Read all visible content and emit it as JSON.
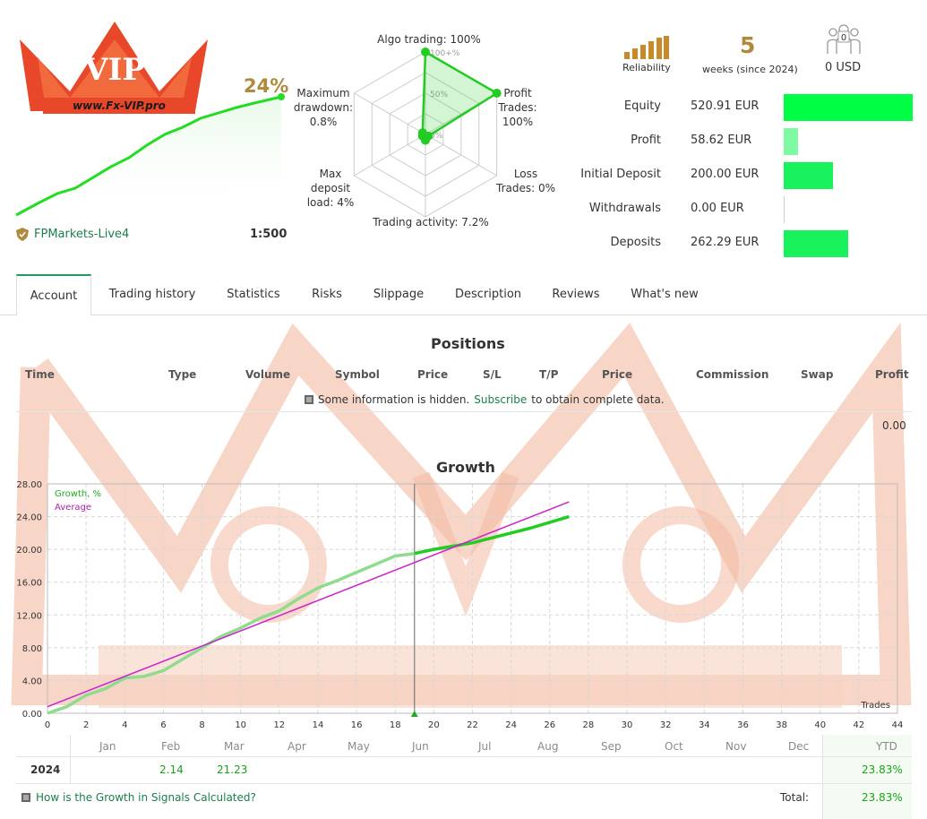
{
  "logo": {
    "text": "VIP",
    "site": "www.Fx-VIP.pro"
  },
  "header": {
    "growth_pct": "24%",
    "broker": "FPMarkets-Live4",
    "leverage": "1:500"
  },
  "radar": {
    "algo": "Algo trading: 100%",
    "profit": "Profit\nTrades:\n100%",
    "loss": "Loss\nTrades: 0%",
    "activity": "Trading activity: 7.2%",
    "deposit_load": "Max\ndeposit\nload: 4%",
    "drawdown": "Maximum\ndrawdown:\n0.8%",
    "ticks": [
      "100+%",
      "50%",
      "0%"
    ],
    "values": {
      "algo": 1.0,
      "profit": 1.0,
      "loss": 0.0,
      "activity": 0.072,
      "deposit_load": 0.04,
      "drawdown": 0.008
    }
  },
  "summary": {
    "reliability_label": "Reliability",
    "weeks_num": "5",
    "weeks_label": "weeks (since 2024)",
    "subscribers_count": "0",
    "subscribers_value": "0 USD"
  },
  "stats": [
    {
      "label": "Equity",
      "value": "520.91 EUR",
      "fill": 1.0,
      "color": "#00ff44"
    },
    {
      "label": "Profit",
      "value": "58.62 EUR",
      "fill": 0.11,
      "color": "#7dfaa2"
    },
    {
      "label": "Initial Deposit",
      "value": "200.00 EUR",
      "fill": 0.38,
      "color": "#19f25c"
    },
    {
      "label": "Withdrawals",
      "value": "0.00 EUR",
      "fill": 0.0,
      "color": "#19f25c"
    },
    {
      "label": "Deposits",
      "value": "262.29 EUR",
      "fill": 0.5,
      "color": "#19f25c"
    }
  ],
  "tabs": [
    "Account",
    "Trading history",
    "Statistics",
    "Risks",
    "Slippage",
    "Description",
    "Reviews",
    "What's new"
  ],
  "positions": {
    "title": "Positions",
    "columns": [
      "Time",
      "Type",
      "Volume",
      "Symbol",
      "Price",
      "S/L",
      "T/P",
      "Price",
      "Commission",
      "Swap",
      "Profit"
    ],
    "note_pre": "Some information is hidden.",
    "note_link": "Subscribe",
    "note_post": "to obtain complete data.",
    "total": "0.00"
  },
  "growth": {
    "title": "Growth",
    "legend_growth": "Growth, %",
    "legend_average": "Average",
    "x_axis_label": "Trades",
    "months": [
      "Jan",
      "Feb",
      "Mar",
      "Apr",
      "May",
      "Jun",
      "Jul",
      "Aug",
      "Sep",
      "Oct",
      "Nov",
      "Dec"
    ],
    "ytd_label": "YTD",
    "year": "2024",
    "month_values": {
      "Feb": "2.14",
      "Mar": "21.23"
    },
    "ytd_value": "23.83%",
    "faq": "How is the Growth in Signals Calculated?",
    "total_label": "Total:",
    "total_value": "23.83%"
  },
  "chart_data": {
    "type": "line",
    "title": "Growth",
    "xlabel": "Trades",
    "ylabel": "",
    "xlim": [
      0,
      44
    ],
    "ylim": [
      0,
      28
    ],
    "x_ticks": [
      0,
      2,
      4,
      6,
      8,
      10,
      12,
      14,
      16,
      18,
      20,
      22,
      24,
      26,
      28,
      30,
      32,
      34,
      36,
      38,
      40,
      42,
      44
    ],
    "y_ticks": [
      "0.00",
      "4.00",
      "8.00",
      "12.00",
      "16.00",
      "20.00",
      "24.00",
      "28.00"
    ],
    "series": [
      {
        "name": "Growth, %",
        "color": "#22cc22",
        "x": [
          0,
          1,
          2,
          3,
          4,
          5,
          6,
          7,
          8,
          9,
          10,
          11,
          12,
          13,
          14,
          15,
          16,
          17,
          18,
          19,
          20,
          21,
          22,
          23,
          24,
          25,
          26,
          27
        ],
        "y": [
          0.0,
          0.8,
          2.2,
          3.0,
          4.3,
          4.5,
          5.2,
          6.6,
          8.0,
          9.4,
          10.4,
          11.6,
          12.5,
          14.0,
          15.3,
          16.2,
          17.2,
          18.2,
          19.2,
          19.5,
          20.0,
          20.4,
          20.8,
          21.4,
          22.0,
          22.6,
          23.3,
          24.0
        ]
      },
      {
        "name": "Average",
        "color": "#cc22cc",
        "x": [
          0,
          27
        ],
        "y": [
          0.8,
          25.8
        ]
      }
    ],
    "cursor_x": 19,
    "grid": true,
    "legend": "top-left"
  }
}
